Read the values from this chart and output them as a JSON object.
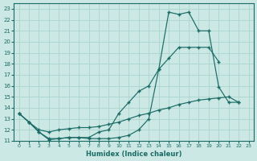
{
  "xlabel": "Humidex (Indice chaleur)",
  "background_color": "#cce8e4",
  "grid_color": "#aad4cf",
  "line_color": "#1a6b65",
  "xlim": [
    -0.5,
    23.5
  ],
  "ylim": [
    11,
    23.5
  ],
  "yticks": [
    11,
    12,
    13,
    14,
    15,
    16,
    17,
    18,
    19,
    20,
    21,
    22,
    23
  ],
  "xticks": [
    0,
    1,
    2,
    3,
    4,
    5,
    6,
    7,
    8,
    9,
    10,
    11,
    12,
    13,
    14,
    15,
    16,
    17,
    18,
    19,
    20,
    21,
    22,
    23
  ],
  "line1": {
    "x": [
      0,
      1,
      2,
      3,
      4,
      5,
      6,
      7,
      8,
      9,
      10,
      11,
      12,
      13,
      14,
      15,
      16,
      17,
      18,
      19,
      20,
      21,
      22
    ],
    "y": [
      13.5,
      12.7,
      11.8,
      11.1,
      11.2,
      11.3,
      11.3,
      11.2,
      11.2,
      11.2,
      11.3,
      11.5,
      12.0,
      13.0,
      17.5,
      22.7,
      22.5,
      22.7,
      21.0,
      21.0,
      15.9,
      14.5,
      14.5
    ]
  },
  "line2": {
    "x": [
      0,
      1,
      2,
      3,
      4,
      5,
      6,
      7,
      8,
      9,
      10,
      11,
      12,
      13,
      14,
      15,
      16,
      17,
      18,
      19,
      20
    ],
    "y": [
      13.5,
      12.7,
      11.8,
      11.2,
      11.2,
      11.3,
      11.3,
      11.3,
      11.8,
      12.0,
      13.5,
      14.5,
      15.5,
      16.0,
      17.5,
      18.5,
      19.5,
      19.5,
      19.5,
      19.5,
      18.2
    ]
  },
  "line3": {
    "x": [
      0,
      1,
      2,
      3,
      4,
      5,
      6,
      7,
      8,
      9,
      10,
      11,
      12,
      13,
      14,
      15,
      16,
      17,
      18,
      19,
      20,
      21,
      22
    ],
    "y": [
      13.5,
      12.7,
      12.0,
      11.8,
      12.0,
      12.1,
      12.2,
      12.2,
      12.3,
      12.5,
      12.7,
      13.0,
      13.3,
      13.5,
      13.8,
      14.0,
      14.3,
      14.5,
      14.7,
      14.8,
      14.9,
      15.0,
      14.5
    ]
  }
}
